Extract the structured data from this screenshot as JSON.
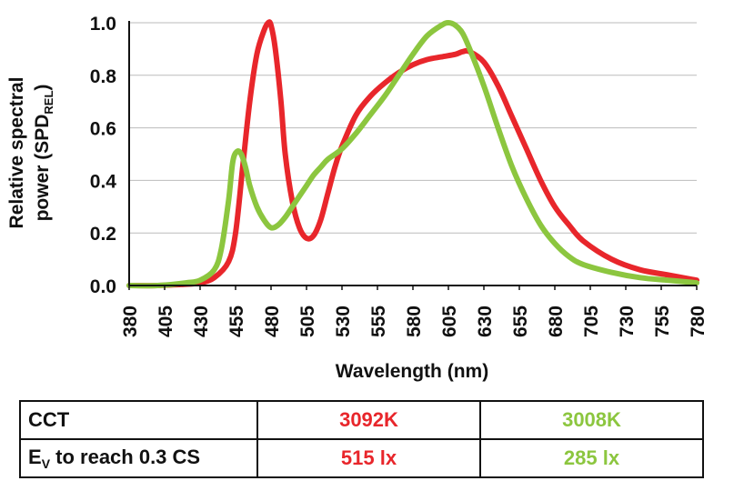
{
  "chart_data": {
    "type": "line",
    "xlabel": "Wavelength (nm)",
    "ylabel_line1": "Relative spectral",
    "ylabel_line2_prefix": "power (SPD",
    "ylabel_line2_sub": "REL",
    "ylabel_line2_suffix": ")",
    "xlim": [
      380,
      780
    ],
    "ylim": [
      0,
      1.0
    ],
    "x_ticks": [
      "380",
      "405",
      "430",
      "455",
      "480",
      "505",
      "530",
      "555",
      "580",
      "605",
      "630",
      "655",
      "680",
      "705",
      "730",
      "755",
      "780"
    ],
    "y_ticks": [
      "0.0",
      "0.2",
      "0.4",
      "0.6",
      "0.8",
      "1.0"
    ],
    "grid": "horizontal",
    "series": [
      {
        "color": "#e8262b",
        "x": [
          380,
          400,
          420,
          430,
          440,
          450,
          455,
          460,
          465,
          470,
          475,
          478,
          480,
          483,
          487,
          490,
          495,
          500,
          505,
          510,
          515,
          520,
          525,
          530,
          540,
          550,
          560,
          570,
          580,
          590,
          600,
          610,
          615,
          620,
          630,
          640,
          650,
          660,
          670,
          680,
          690,
          700,
          720,
          740,
          760,
          780
        ],
        "y": [
          0.0,
          0.0,
          0.005,
          0.01,
          0.03,
          0.09,
          0.2,
          0.45,
          0.7,
          0.88,
          0.97,
          1.0,
          0.99,
          0.9,
          0.7,
          0.5,
          0.32,
          0.22,
          0.18,
          0.19,
          0.25,
          0.35,
          0.45,
          0.53,
          0.65,
          0.72,
          0.77,
          0.81,
          0.84,
          0.86,
          0.87,
          0.88,
          0.89,
          0.89,
          0.85,
          0.76,
          0.64,
          0.52,
          0.4,
          0.3,
          0.23,
          0.17,
          0.1,
          0.06,
          0.04,
          0.02
        ]
      },
      {
        "color": "#8cc63f",
        "x": [
          380,
          400,
          420,
          430,
          440,
          445,
          450,
          453,
          456,
          459,
          462,
          465,
          470,
          475,
          480,
          485,
          490,
          495,
          500,
          505,
          510,
          515,
          520,
          530,
          540,
          550,
          560,
          570,
          580,
          590,
          600,
          605,
          610,
          615,
          620,
          630,
          640,
          650,
          660,
          670,
          680,
          690,
          700,
          720,
          740,
          760,
          780
        ],
        "y": [
          0.0,
          0.0,
          0.01,
          0.02,
          0.06,
          0.14,
          0.32,
          0.47,
          0.51,
          0.5,
          0.45,
          0.38,
          0.3,
          0.25,
          0.22,
          0.23,
          0.26,
          0.3,
          0.34,
          0.38,
          0.42,
          0.45,
          0.48,
          0.52,
          0.58,
          0.65,
          0.72,
          0.8,
          0.88,
          0.95,
          0.99,
          1.0,
          0.99,
          0.96,
          0.9,
          0.76,
          0.6,
          0.45,
          0.33,
          0.23,
          0.16,
          0.11,
          0.08,
          0.05,
          0.03,
          0.02,
          0.01
        ]
      }
    ]
  },
  "table": {
    "rows": [
      {
        "label_main": "CCT",
        "label_sub": "",
        "label_rest": "",
        "red_value": "3092K",
        "green_value": "3008K"
      },
      {
        "label_main": "E",
        "label_sub": "V",
        "label_rest": " to reach 0.3 CS",
        "red_value": "515 lx",
        "green_value": "285 lx"
      }
    ]
  },
  "colors": {
    "red": "#e8262b",
    "green": "#8cc63f",
    "grid": "#bbbbbb",
    "axis": "#111111"
  }
}
